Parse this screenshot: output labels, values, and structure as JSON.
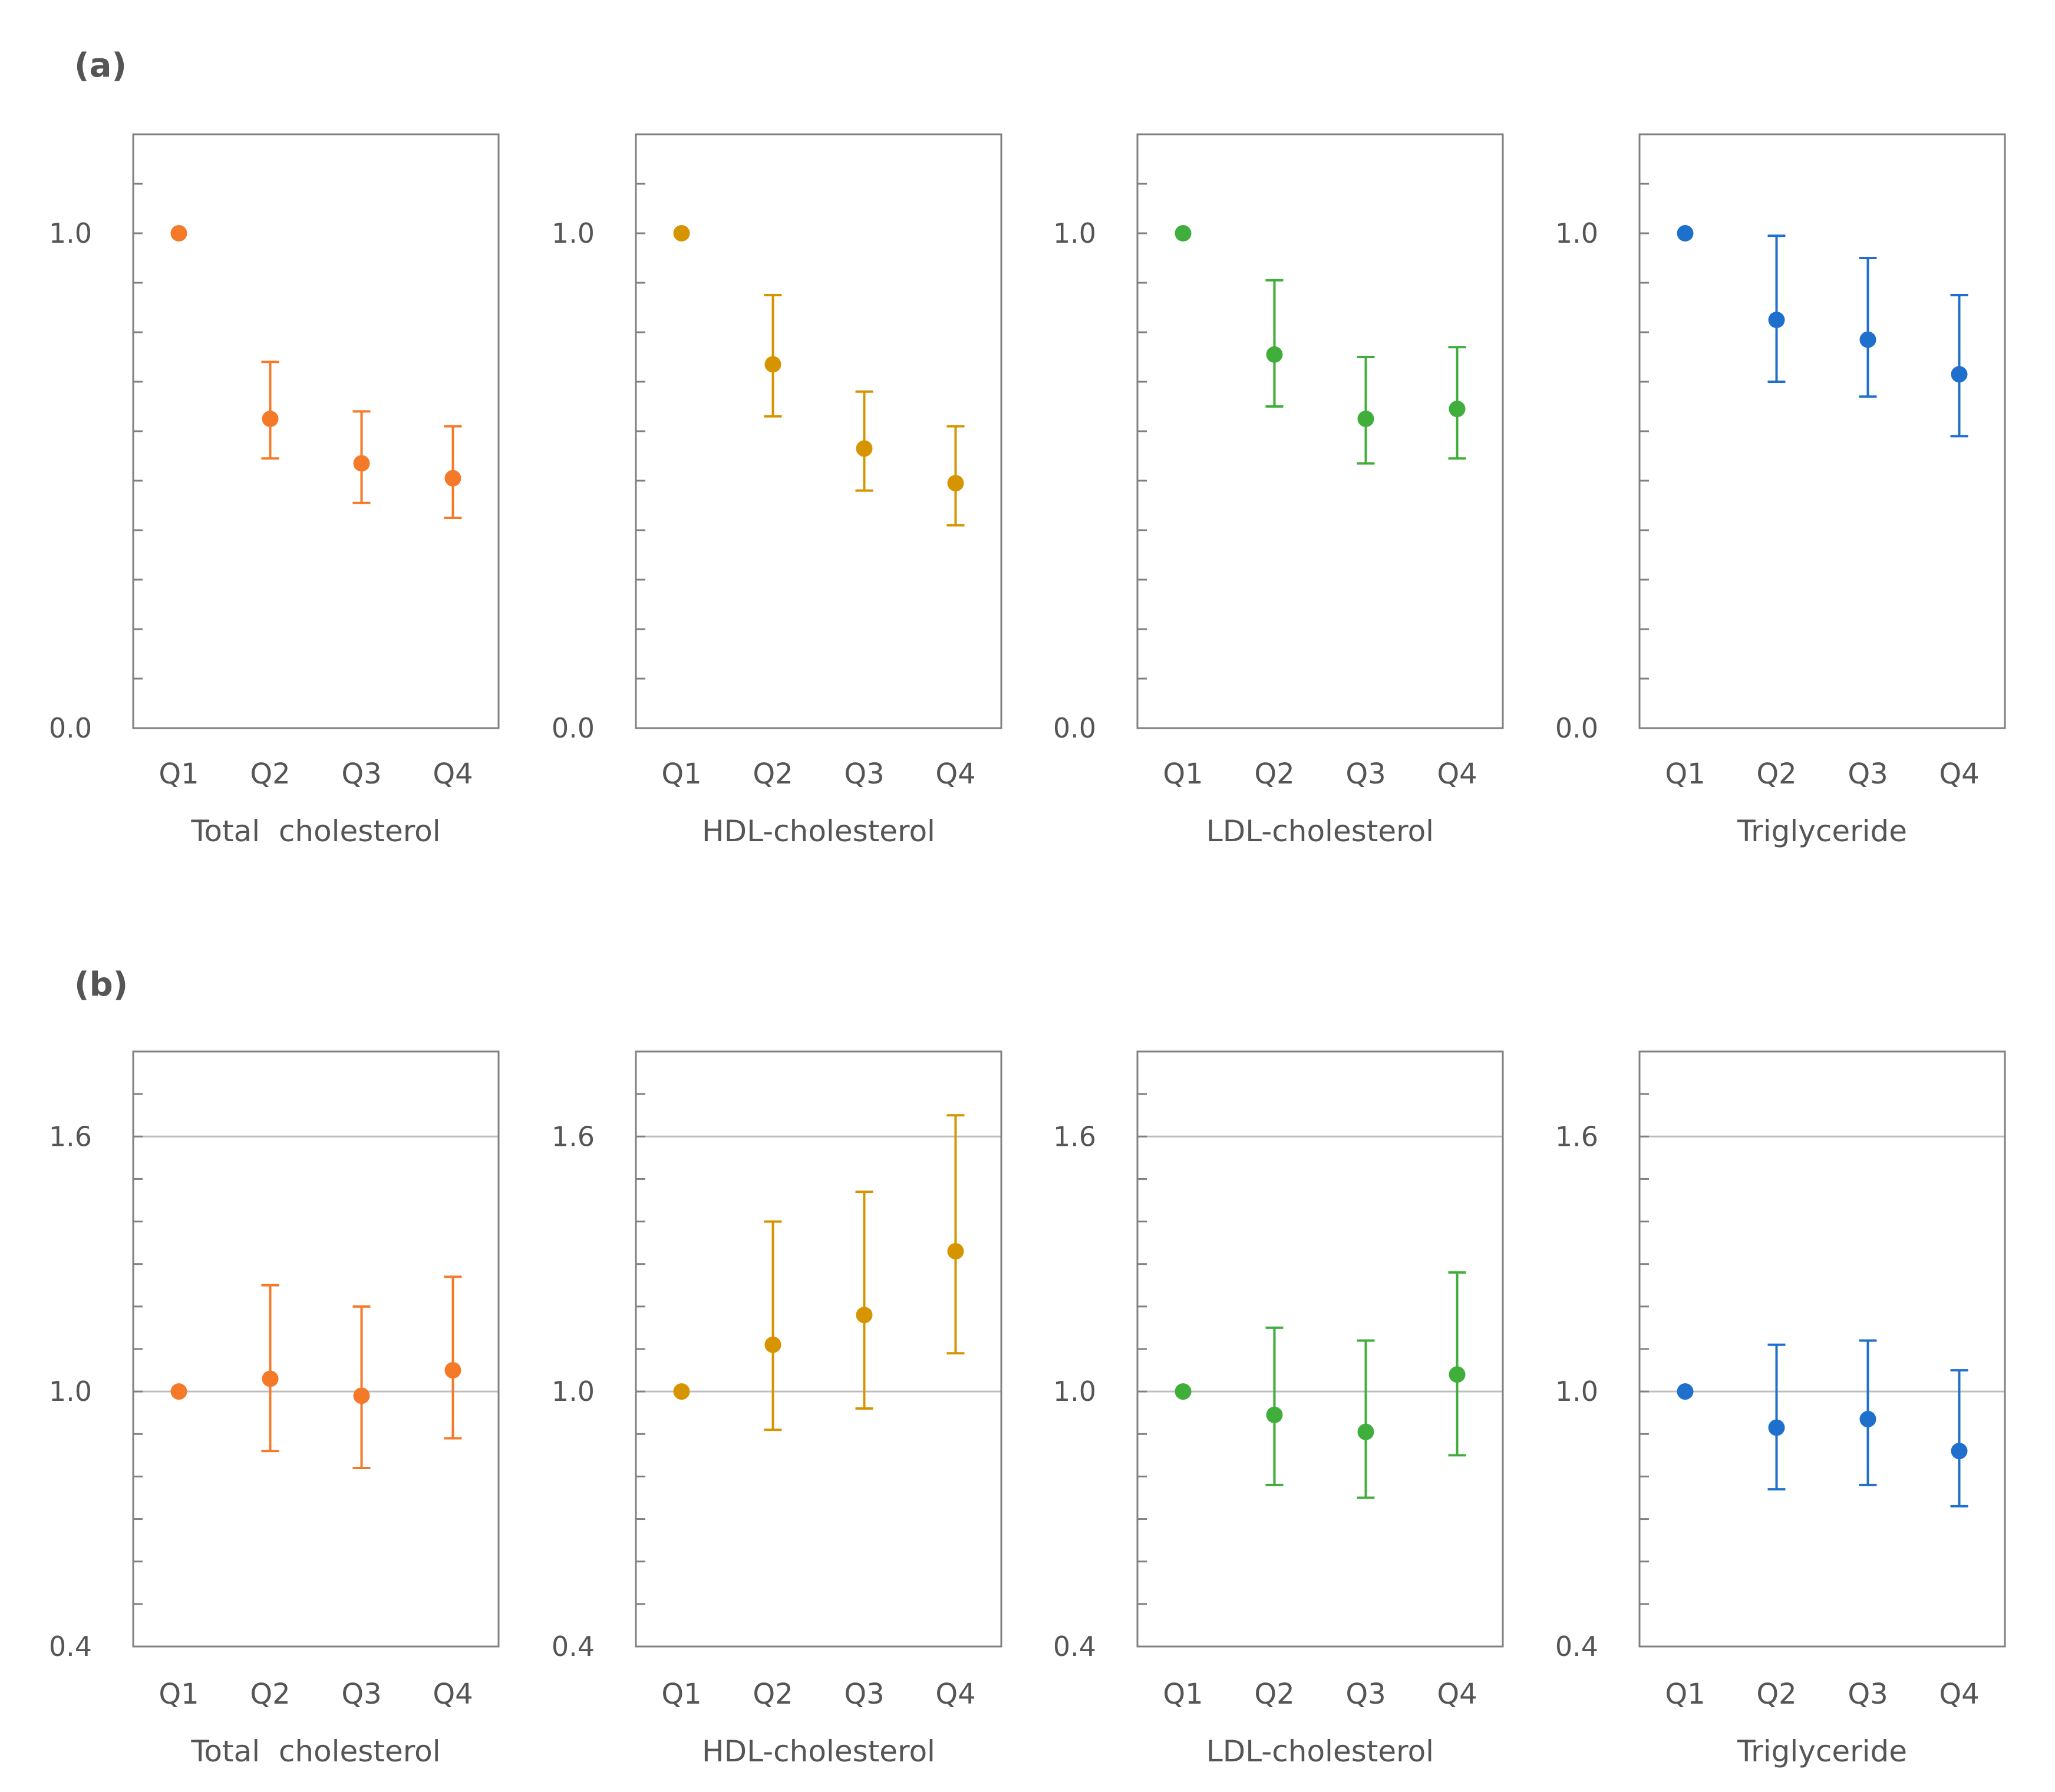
{
  "panels": [
    {
      "label": "(a)",
      "ylim": [
        0.0,
        1.2
      ],
      "yticks": [
        "0.0",
        "1.0"
      ],
      "ytick_values": [
        0.0,
        1.0
      ],
      "minor_tick_step": 0.1,
      "gridlines": [],
      "charts": [
        {
          "type": "scatter",
          "title": "Total  cholesterol",
          "color": "#f47a2a",
          "categories": [
            "Q1",
            "Q2",
            "Q3",
            "Q4"
          ],
          "values": [
            1.0,
            0.625,
            0.535,
            0.505
          ],
          "ci_low": [
            null,
            0.545,
            0.455,
            0.425
          ],
          "ci_high": [
            null,
            0.74,
            0.64,
            0.61
          ]
        },
        {
          "type": "scatter",
          "title": "HDL-cholesterol",
          "color": "#d69500",
          "categories": [
            "Q1",
            "Q2",
            "Q3",
            "Q4"
          ],
          "values": [
            1.0,
            0.735,
            0.565,
            0.495
          ],
          "ci_low": [
            null,
            0.63,
            0.48,
            0.41
          ],
          "ci_high": [
            null,
            0.875,
            0.68,
            0.61
          ]
        },
        {
          "type": "scatter",
          "title": "LDL-cholesterol",
          "color": "#3fae3a",
          "categories": [
            "Q1",
            "Q2",
            "Q3",
            "Q4"
          ],
          "values": [
            1.0,
            0.755,
            0.625,
            0.645
          ],
          "ci_low": [
            null,
            0.65,
            0.535,
            0.545
          ],
          "ci_high": [
            null,
            0.905,
            0.75,
            0.77
          ]
        },
        {
          "type": "scatter",
          "title": "Triglyceride",
          "color": "#1f6fcc",
          "categories": [
            "Q1",
            "Q2",
            "Q3",
            "Q4"
          ],
          "values": [
            1.0,
            0.825,
            0.785,
            0.715
          ],
          "ci_low": [
            null,
            0.7,
            0.67,
            0.59
          ],
          "ci_high": [
            null,
            0.995,
            0.95,
            0.875
          ]
        }
      ]
    },
    {
      "label": "(b)",
      "ylim": [
        0.4,
        1.8
      ],
      "yticks": [
        "0.4",
        "1.0",
        "1.6"
      ],
      "ytick_values": [
        0.4,
        1.0,
        1.6
      ],
      "minor_tick_step": 0.1,
      "gridlines": [
        1.0,
        1.6
      ],
      "charts": [
        {
          "type": "scatter",
          "title": "Total  cholesterol",
          "color": "#f47a2a",
          "categories": [
            "Q1",
            "Q2",
            "Q3",
            "Q4"
          ],
          "values": [
            1.0,
            1.03,
            0.99,
            1.05
          ],
          "ci_low": [
            null,
            0.86,
            0.82,
            0.89
          ],
          "ci_high": [
            null,
            1.25,
            1.2,
            1.27
          ]
        },
        {
          "type": "scatter",
          "title": "HDL-cholesterol",
          "color": "#d69500",
          "categories": [
            "Q1",
            "Q2",
            "Q3",
            "Q4"
          ],
          "values": [
            1.0,
            1.11,
            1.18,
            1.33
          ],
          "ci_low": [
            null,
            0.91,
            0.96,
            1.09
          ],
          "ci_high": [
            null,
            1.4,
            1.47,
            1.65
          ]
        },
        {
          "type": "scatter",
          "title": "LDL-cholesterol",
          "color": "#3fae3a",
          "categories": [
            "Q1",
            "Q2",
            "Q3",
            "Q4"
          ],
          "values": [
            1.0,
            0.945,
            0.905,
            1.04
          ],
          "ci_low": [
            null,
            0.78,
            0.75,
            0.85
          ],
          "ci_high": [
            null,
            1.15,
            1.12,
            1.28
          ]
        },
        {
          "type": "scatter",
          "title": "Triglyceride",
          "color": "#1f6fcc",
          "categories": [
            "Q1",
            "Q2",
            "Q3",
            "Q4"
          ],
          "values": [
            1.0,
            0.915,
            0.935,
            0.86
          ],
          "ci_low": [
            null,
            0.77,
            0.78,
            0.73
          ],
          "ci_high": [
            null,
            1.11,
            1.12,
            1.05
          ]
        }
      ]
    }
  ],
  "chart_data": [
    {
      "panel": "(a)",
      "type": "scatter",
      "title": "Total  cholesterol",
      "categories": [
        "Q1",
        "Q2",
        "Q3",
        "Q4"
      ],
      "values": [
        1.0,
        0.625,
        0.535,
        0.505
      ],
      "ci_low": [
        null,
        0.545,
        0.455,
        0.425
      ],
      "ci_high": [
        null,
        0.74,
        0.64,
        0.61
      ],
      "ylim": [
        0.0,
        1.2
      ]
    },
    {
      "panel": "(a)",
      "type": "scatter",
      "title": "HDL-cholesterol",
      "categories": [
        "Q1",
        "Q2",
        "Q3",
        "Q4"
      ],
      "values": [
        1.0,
        0.735,
        0.565,
        0.495
      ],
      "ci_low": [
        null,
        0.63,
        0.48,
        0.41
      ],
      "ci_high": [
        null,
        0.875,
        0.68,
        0.61
      ],
      "ylim": [
        0.0,
        1.2
      ]
    },
    {
      "panel": "(a)",
      "type": "scatter",
      "title": "LDL-cholesterol",
      "categories": [
        "Q1",
        "Q2",
        "Q3",
        "Q4"
      ],
      "values": [
        1.0,
        0.755,
        0.625,
        0.645
      ],
      "ci_low": [
        null,
        0.65,
        0.535,
        0.545
      ],
      "ci_high": [
        null,
        0.905,
        0.75,
        0.77
      ],
      "ylim": [
        0.0,
        1.2
      ]
    },
    {
      "panel": "(a)",
      "type": "scatter",
      "title": "Triglyceride",
      "categories": [
        "Q1",
        "Q2",
        "Q3",
        "Q4"
      ],
      "values": [
        1.0,
        0.825,
        0.785,
        0.715
      ],
      "ci_low": [
        null,
        0.7,
        0.67,
        0.59
      ],
      "ci_high": [
        null,
        0.995,
        0.95,
        0.875
      ],
      "ylim": [
        0.0,
        1.2
      ]
    },
    {
      "panel": "(b)",
      "type": "scatter",
      "title": "Total  cholesterol",
      "categories": [
        "Q1",
        "Q2",
        "Q3",
        "Q4"
      ],
      "values": [
        1.0,
        1.03,
        0.99,
        1.05
      ],
      "ci_low": [
        null,
        0.86,
        0.82,
        0.89
      ],
      "ci_high": [
        null,
        1.25,
        1.2,
        1.27
      ],
      "ylim": [
        0.4,
        1.8
      ]
    },
    {
      "panel": "(b)",
      "type": "scatter",
      "title": "HDL-cholesterol",
      "categories": [
        "Q1",
        "Q2",
        "Q3",
        "Q4"
      ],
      "values": [
        1.0,
        1.11,
        1.18,
        1.33
      ],
      "ci_low": [
        null,
        0.91,
        0.96,
        1.09
      ],
      "ci_high": [
        null,
        1.4,
        1.47,
        1.65
      ],
      "ylim": [
        0.4,
        1.8
      ]
    },
    {
      "panel": "(b)",
      "type": "scatter",
      "title": "LDL-cholesterol",
      "categories": [
        "Q1",
        "Q2",
        "Q3",
        "Q4"
      ],
      "values": [
        1.0,
        0.945,
        0.905,
        1.04
      ],
      "ci_low": [
        null,
        0.78,
        0.75,
        0.85
      ],
      "ci_high": [
        null,
        1.15,
        1.12,
        1.28
      ],
      "ylim": [
        0.4,
        1.8
      ]
    },
    {
      "panel": "(b)",
      "type": "scatter",
      "title": "Triglyceride",
      "categories": [
        "Q1",
        "Q2",
        "Q3",
        "Q4"
      ],
      "values": [
        1.0,
        0.915,
        0.935,
        0.86
      ],
      "ci_low": [
        null,
        0.77,
        0.78,
        0.73
      ],
      "ci_high": [
        null,
        1.11,
        1.12,
        1.05
      ],
      "ylim": [
        0.4,
        1.8
      ]
    }
  ]
}
